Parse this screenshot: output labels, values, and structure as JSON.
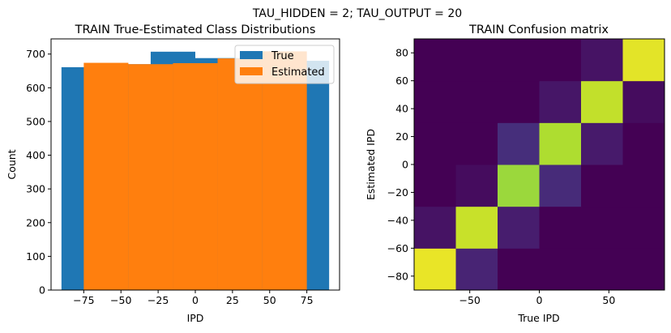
{
  "figure_title": "TAU_HIDDEN = 2; TAU_OUTPUT = 20",
  "colors": {
    "true": "#1f77b4",
    "estimated": "#ff7f0e"
  },
  "chart_data": [
    {
      "type": "bar",
      "title": "TRAIN True-Estimated Class Distributions",
      "xlabel": "IPD",
      "ylabel": "Count",
      "xlim": [
        -97,
        97
      ],
      "ylim": [
        0,
        745
      ],
      "xticks": [
        -75,
        -50,
        -25,
        0,
        25,
        50,
        75
      ],
      "xtick_labels": [
        "−75",
        "−50",
        "−25",
        "0",
        "25",
        "50",
        "75"
      ],
      "yticks": [
        0,
        100,
        200,
        300,
        400,
        500,
        600,
        700
      ],
      "ytick_labels": [
        "0",
        "100",
        "200",
        "300",
        "400",
        "500",
        "600",
        "700"
      ],
      "legend": {
        "position": "top-right",
        "labels": [
          "True",
          "Estimated"
        ]
      },
      "series": [
        {
          "name": "True",
          "bin_edges": [
            -90,
            -60,
            -30,
            0,
            30,
            60,
            90
          ],
          "values": [
            661,
            670,
            707,
            688,
            708,
            680
          ]
        },
        {
          "name": "Estimated",
          "bin_edges": [
            -75,
            -45,
            -15,
            15,
            45,
            75
          ],
          "values": [
            674,
            670,
            673,
            687,
            708
          ]
        }
      ]
    },
    {
      "type": "heatmap",
      "title": "TRAIN Confusion matrix",
      "xlabel": "True IPD",
      "ylabel": "Estimated IPD",
      "xlim": [
        -90,
        90
      ],
      "ylim": [
        -90,
        90
      ],
      "xticks": [
        -50,
        0,
        50
      ],
      "xtick_labels": [
        "−50",
        "0",
        "50"
      ],
      "yticks": [
        -80,
        -60,
        -40,
        -20,
        0,
        20,
        40,
        60,
        80
      ],
      "ytick_labels": [
        "−80",
        "−60",
        "−40",
        "−20",
        "0",
        "20",
        "40",
        "60",
        "80"
      ],
      "colormap": "viridis",
      "bin_edges": [
        -90,
        -60,
        -30,
        0,
        30,
        60,
        90
      ],
      "matrix_note": "rows = estimated bins from low to high; cols = true bins from low to high; values normalized 0-1",
      "matrix": [
        [
          0.97,
          0.1,
          0.0,
          0.0,
          0.0,
          0.0
        ],
        [
          0.05,
          0.92,
          0.08,
          0.0,
          0.0,
          0.0
        ],
        [
          0.0,
          0.03,
          0.85,
          0.12,
          0.0,
          0.0
        ],
        [
          0.0,
          0.0,
          0.13,
          0.88,
          0.07,
          0.0
        ],
        [
          0.0,
          0.0,
          0.0,
          0.06,
          0.91,
          0.03
        ],
        [
          0.0,
          0.0,
          0.0,
          0.0,
          0.05,
          0.96
        ]
      ]
    }
  ]
}
